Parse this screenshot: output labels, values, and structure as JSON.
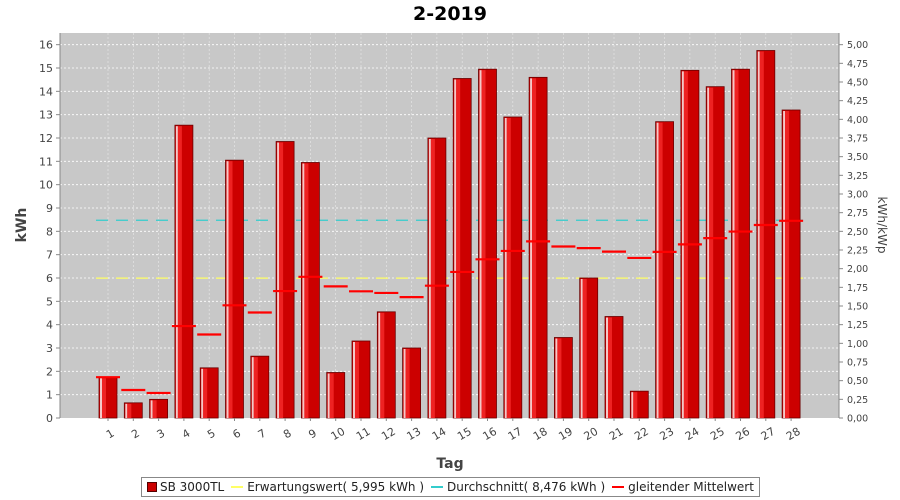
{
  "chart_data": {
    "type": "bar",
    "title": "2-2019",
    "xlabel": "Tag",
    "ylabel": "kWh",
    "y2label": "kWh/kWp",
    "ylim": [
      0,
      16.5
    ],
    "y2lim": [
      0,
      5.15625
    ],
    "yticks": [
      0,
      1,
      2,
      3,
      4,
      5,
      6,
      7,
      8,
      9,
      10,
      11,
      12,
      13,
      14,
      15,
      16
    ],
    "y2ticks": [
      "0,00",
      "0,25",
      "0,50",
      "0,75",
      "1,00",
      "1,25",
      "1,50",
      "1,75",
      "2,00",
      "2,25",
      "2,50",
      "2,75",
      "3,00",
      "3,25",
      "3,50",
      "3,75",
      "4,00",
      "4,25",
      "4,50",
      "4,75",
      "5,00"
    ],
    "categories": [
      "1",
      "2",
      "3",
      "4",
      "5",
      "6",
      "7",
      "8",
      "9",
      "10",
      "11",
      "12",
      "13",
      "14",
      "15",
      "16",
      "17",
      "18",
      "19",
      "20",
      "21",
      "22",
      "23",
      "24",
      "25",
      "26",
      "27",
      "28"
    ],
    "grid": true,
    "legend_position": "bottom",
    "series": [
      {
        "name": "SB 3000TL",
        "type": "bar",
        "color": "#dd0000",
        "values": [
          1.75,
          0.65,
          0.8,
          12.55,
          2.15,
          11.05,
          2.65,
          11.85,
          10.95,
          1.95,
          3.3,
          4.55,
          3.0,
          12.0,
          14.55,
          14.95,
          12.9,
          14.6,
          3.45,
          6.0,
          4.35,
          1.15,
          12.7,
          14.9,
          14.2,
          14.95,
          15.75,
          13.2
        ]
      },
      {
        "name": "Erwartungswert( 5,995 kWh )",
        "type": "line",
        "color": "#ffff66",
        "value": 5.995
      },
      {
        "name": "Durchschnitt( 8,476 kWh )",
        "type": "line",
        "color": "#33cccc",
        "value": 8.476
      },
      {
        "name": "gleitender Mittelwert",
        "type": "step",
        "color": "#ff0000",
        "values": [
          1.75,
          1.2,
          1.07,
          3.94,
          3.58,
          4.83,
          4.52,
          5.44,
          6.05,
          5.64,
          5.43,
          5.36,
          5.18,
          5.67,
          6.26,
          6.8,
          7.16,
          7.57,
          7.35,
          7.28,
          7.13,
          6.86,
          7.12,
          7.44,
          7.71,
          7.99,
          8.27,
          8.45
        ]
      }
    ]
  }
}
